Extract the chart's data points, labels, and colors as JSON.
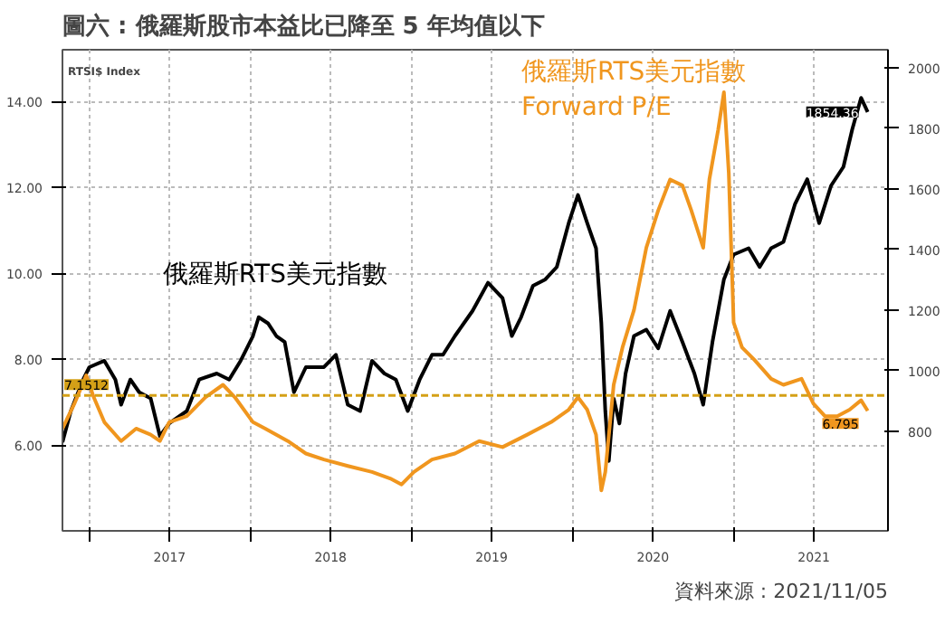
{
  "chart_data": {
    "type": "line",
    "title": "圖六 : 俄羅斯股市本益比已降至 5 年均值以下",
    "annotations": [
      "RTSI$ Index",
      "資料來源 : 2021/11/05"
    ],
    "xlim": [
      "2016-11-01",
      "2021-12-17"
    ],
    "xticks": [
      {
        "value": "2017-01-01",
        "label": null
      },
      {
        "value": "2017-07-02",
        "label": "2017"
      },
      {
        "value": "2018-01-01",
        "label": null
      },
      {
        "value": "2018-07-02",
        "label": "2018"
      },
      {
        "value": "2019-01-01",
        "label": null
      },
      {
        "value": "2019-07-02",
        "label": "2019"
      },
      {
        "value": "2020-01-01",
        "label": null
      },
      {
        "value": "2020-07-02",
        "label": "2020"
      },
      {
        "value": "2021-01-01",
        "label": null
      },
      {
        "value": "2021-07-02",
        "label": "2021"
      }
    ],
    "ylim": [
      4.0,
      15.2
    ],
    "yticks": [
      {
        "value": 6,
        "label": "6.00"
      },
      {
        "value": 8,
        "label": "8.00"
      },
      {
        "value": 10,
        "label": "10.00"
      },
      {
        "value": 12,
        "label": "12.00"
      },
      {
        "value": 14,
        "label": "14.00"
      }
    ],
    "y2lim": [
      470,
      2060
    ],
    "y2ticks": [
      800,
      1000,
      1200,
      1400,
      1600,
      1800,
      2000
    ],
    "grid": true,
    "ref_lines": [
      {
        "axis": "y",
        "value": 7.1512,
        "label": "7.1512",
        "color": "#d4a017",
        "line_style": "dashed"
      }
    ],
    "series": [
      {
        "name": "俄羅斯RTS美元指數",
        "color": "#000000",
        "axis": "y2",
        "x": [
          "2016-11-01",
          "2016-11-20",
          "2016-12-18",
          "2017-01-01",
          "2017-02-04",
          "2017-03-01",
          "2017-03-14",
          "2017-04-04",
          "2017-04-24",
          "2017-05-20",
          "2017-06-10",
          "2017-07-01",
          "2017-08-10",
          "2017-09-07",
          "2017-10-17",
          "2017-11-14",
          "2017-12-10",
          "2018-01-07",
          "2018-01-20",
          "2018-02-10",
          "2018-03-01",
          "2018-03-20",
          "2018-04-10",
          "2018-05-07",
          "2018-06-17",
          "2018-07-14",
          "2018-08-10",
          "2018-09-07",
          "2018-10-04",
          "2018-11-01",
          "2018-11-27",
          "2018-12-24",
          "2019-01-20",
          "2019-02-17",
          "2019-03-14",
          "2019-04-10",
          "2019-05-20",
          "2019-06-24",
          "2019-07-27",
          "2019-08-17",
          "2019-09-07",
          "2019-10-04",
          "2019-11-01",
          "2019-11-27",
          "2019-12-24",
          "2020-01-14",
          "2020-02-04",
          "2020-02-24",
          "2020-03-07",
          "2020-03-16",
          "2020-03-24",
          "2020-04-04",
          "2020-04-17",
          "2020-05-01",
          "2020-05-20",
          "2020-06-17",
          "2020-07-14",
          "2020-08-10",
          "2020-09-07",
          "2020-10-04",
          "2020-10-24",
          "2020-11-14",
          "2020-12-10",
          "2021-01-01",
          "2021-02-04",
          "2021-03-01",
          "2021-03-27",
          "2021-04-24",
          "2021-05-20",
          "2021-06-17",
          "2021-07-14",
          "2021-08-10",
          "2021-09-07",
          "2021-09-27",
          "2021-10-17",
          "2021-11-01"
        ],
        "values": [
          763,
          866,
          970,
          1011,
          1032,
          970,
          887,
          970,
          928,
          908,
          783,
          825,
          866,
          970,
          990,
          970,
          1032,
          1114,
          1176,
          1156,
          1114,
          1094,
          928,
          1011,
          1011,
          1052,
          887,
          866,
          1032,
          990,
          970,
          866,
          970,
          1052,
          1052,
          1114,
          1197,
          1290,
          1239,
          1114,
          1176,
          1280,
          1301,
          1342,
          1487,
          1580,
          1487,
          1404,
          1156,
          866,
          701,
          907,
          825,
          990,
          1114,
          1135,
          1073,
          1197,
          1094,
          990,
          887,
          1094,
          1301,
          1383,
          1404,
          1342,
          1404,
          1425,
          1549,
          1632,
          1487,
          1611,
          1673,
          1797,
          1901,
          1854.36
        ],
        "value_labels": [
          null,
          null,
          null,
          null,
          null,
          null,
          null,
          null,
          null,
          null,
          null,
          null,
          null,
          null,
          null,
          null,
          null,
          null,
          null,
          null,
          null,
          null,
          null,
          null,
          null,
          null,
          null,
          null,
          null,
          null,
          null,
          null,
          null,
          null,
          null,
          null,
          null,
          null,
          null,
          null,
          null,
          null,
          null,
          null,
          null,
          null,
          null,
          null,
          null,
          null,
          null,
          null,
          null,
          null,
          null,
          null,
          null,
          null,
          null,
          null,
          null,
          null,
          null,
          null,
          null,
          null,
          null,
          null,
          null,
          null,
          null,
          null,
          null,
          null,
          null,
          "1854.36"
        ]
      },
      {
        "name": "俄羅斯RTS美元指數\nForward P/E",
        "color": "#f0961e",
        "x": [
          "2016-11-01",
          "2016-11-28",
          "2016-12-25",
          "2017-01-11",
          "2017-02-04",
          "2017-03-14",
          "2017-04-17",
          "2017-05-20",
          "2017-06-10",
          "2017-07-01",
          "2017-08-10",
          "2017-09-21",
          "2017-10-31",
          "2017-11-27",
          "2018-01-07",
          "2018-02-04",
          "2018-03-27",
          "2018-05-07",
          "2018-06-17",
          "2018-08-10",
          "2018-10-04",
          "2018-11-14",
          "2018-12-10",
          "2019-01-07",
          "2019-02-17",
          "2019-04-10",
          "2019-06-04",
          "2019-07-27",
          "2019-09-21",
          "2019-11-14",
          "2019-12-24",
          "2020-01-14",
          "2020-02-04",
          "2020-02-24",
          "2020-03-07",
          "2020-03-16",
          "2020-04-04",
          "2020-04-24",
          "2020-05-20",
          "2020-06-17",
          "2020-07-14",
          "2020-08-10",
          "2020-09-07",
          "2020-09-27",
          "2020-10-24",
          "2020-11-07",
          "2020-11-27",
          "2020-12-10",
          "2020-12-21",
          "2021-01-01",
          "2021-01-20",
          "2021-02-17",
          "2021-03-27",
          "2021-04-24",
          "2021-06-04",
          "2021-07-01",
          "2021-07-27",
          "2021-08-24",
          "2021-09-21",
          "2021-10-17",
          "2021-11-01"
        ],
        "values": [
          6.38,
          6.96,
          7.62,
          7.11,
          6.53,
          6.09,
          6.38,
          6.24,
          6.09,
          6.53,
          6.67,
          7.11,
          7.4,
          7.11,
          6.53,
          6.38,
          6.09,
          5.8,
          5.66,
          5.51,
          5.37,
          5.22,
          5.08,
          5.37,
          5.66,
          5.8,
          6.09,
          5.95,
          6.24,
          6.53,
          6.82,
          7.11,
          6.82,
          6.24,
          4.94,
          5.37,
          7.4,
          8.27,
          9.14,
          10.59,
          11.46,
          12.18,
          12.04,
          11.46,
          10.59,
          12.18,
          13.34,
          14.21,
          12.33,
          8.85,
          8.27,
          7.98,
          7.54,
          7.4,
          7.54,
          6.96,
          6.67,
          6.67,
          6.82,
          7.04,
          6.795
        ],
        "value_labels": [
          null,
          null,
          null,
          null,
          null,
          null,
          null,
          null,
          null,
          null,
          null,
          null,
          null,
          null,
          null,
          null,
          null,
          null,
          null,
          null,
          null,
          null,
          null,
          null,
          null,
          null,
          null,
          null,
          null,
          null,
          null,
          null,
          null,
          null,
          null,
          null,
          null,
          null,
          null,
          null,
          null,
          null,
          null,
          null,
          null,
          null,
          null,
          null,
          null,
          null,
          null,
          null,
          null,
          null,
          null,
          null,
          null,
          null,
          null,
          null,
          "6.795"
        ]
      }
    ]
  }
}
